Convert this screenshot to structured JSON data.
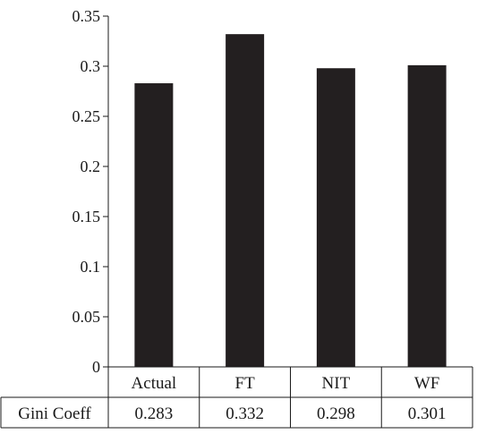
{
  "chart_data": {
    "type": "bar",
    "categories": [
      "Actual",
      "FT",
      "NIT",
      "WF"
    ],
    "series": [
      {
        "values": [
          0.283,
          0.332,
          0.298,
          0.301
        ]
      }
    ],
    "ylim": [
      0,
      0.35
    ],
    "yticks": [
      "0",
      "0.05",
      "0.1",
      "0.15",
      "0.2",
      "0.25",
      "0.3",
      "0.35"
    ],
    "grid": false,
    "bar_color": "#231f20",
    "data_table": {
      "row_label": "Gini Coeff",
      "values": [
        "0.283",
        "0.332",
        "0.298",
        "0.301"
      ]
    }
  }
}
